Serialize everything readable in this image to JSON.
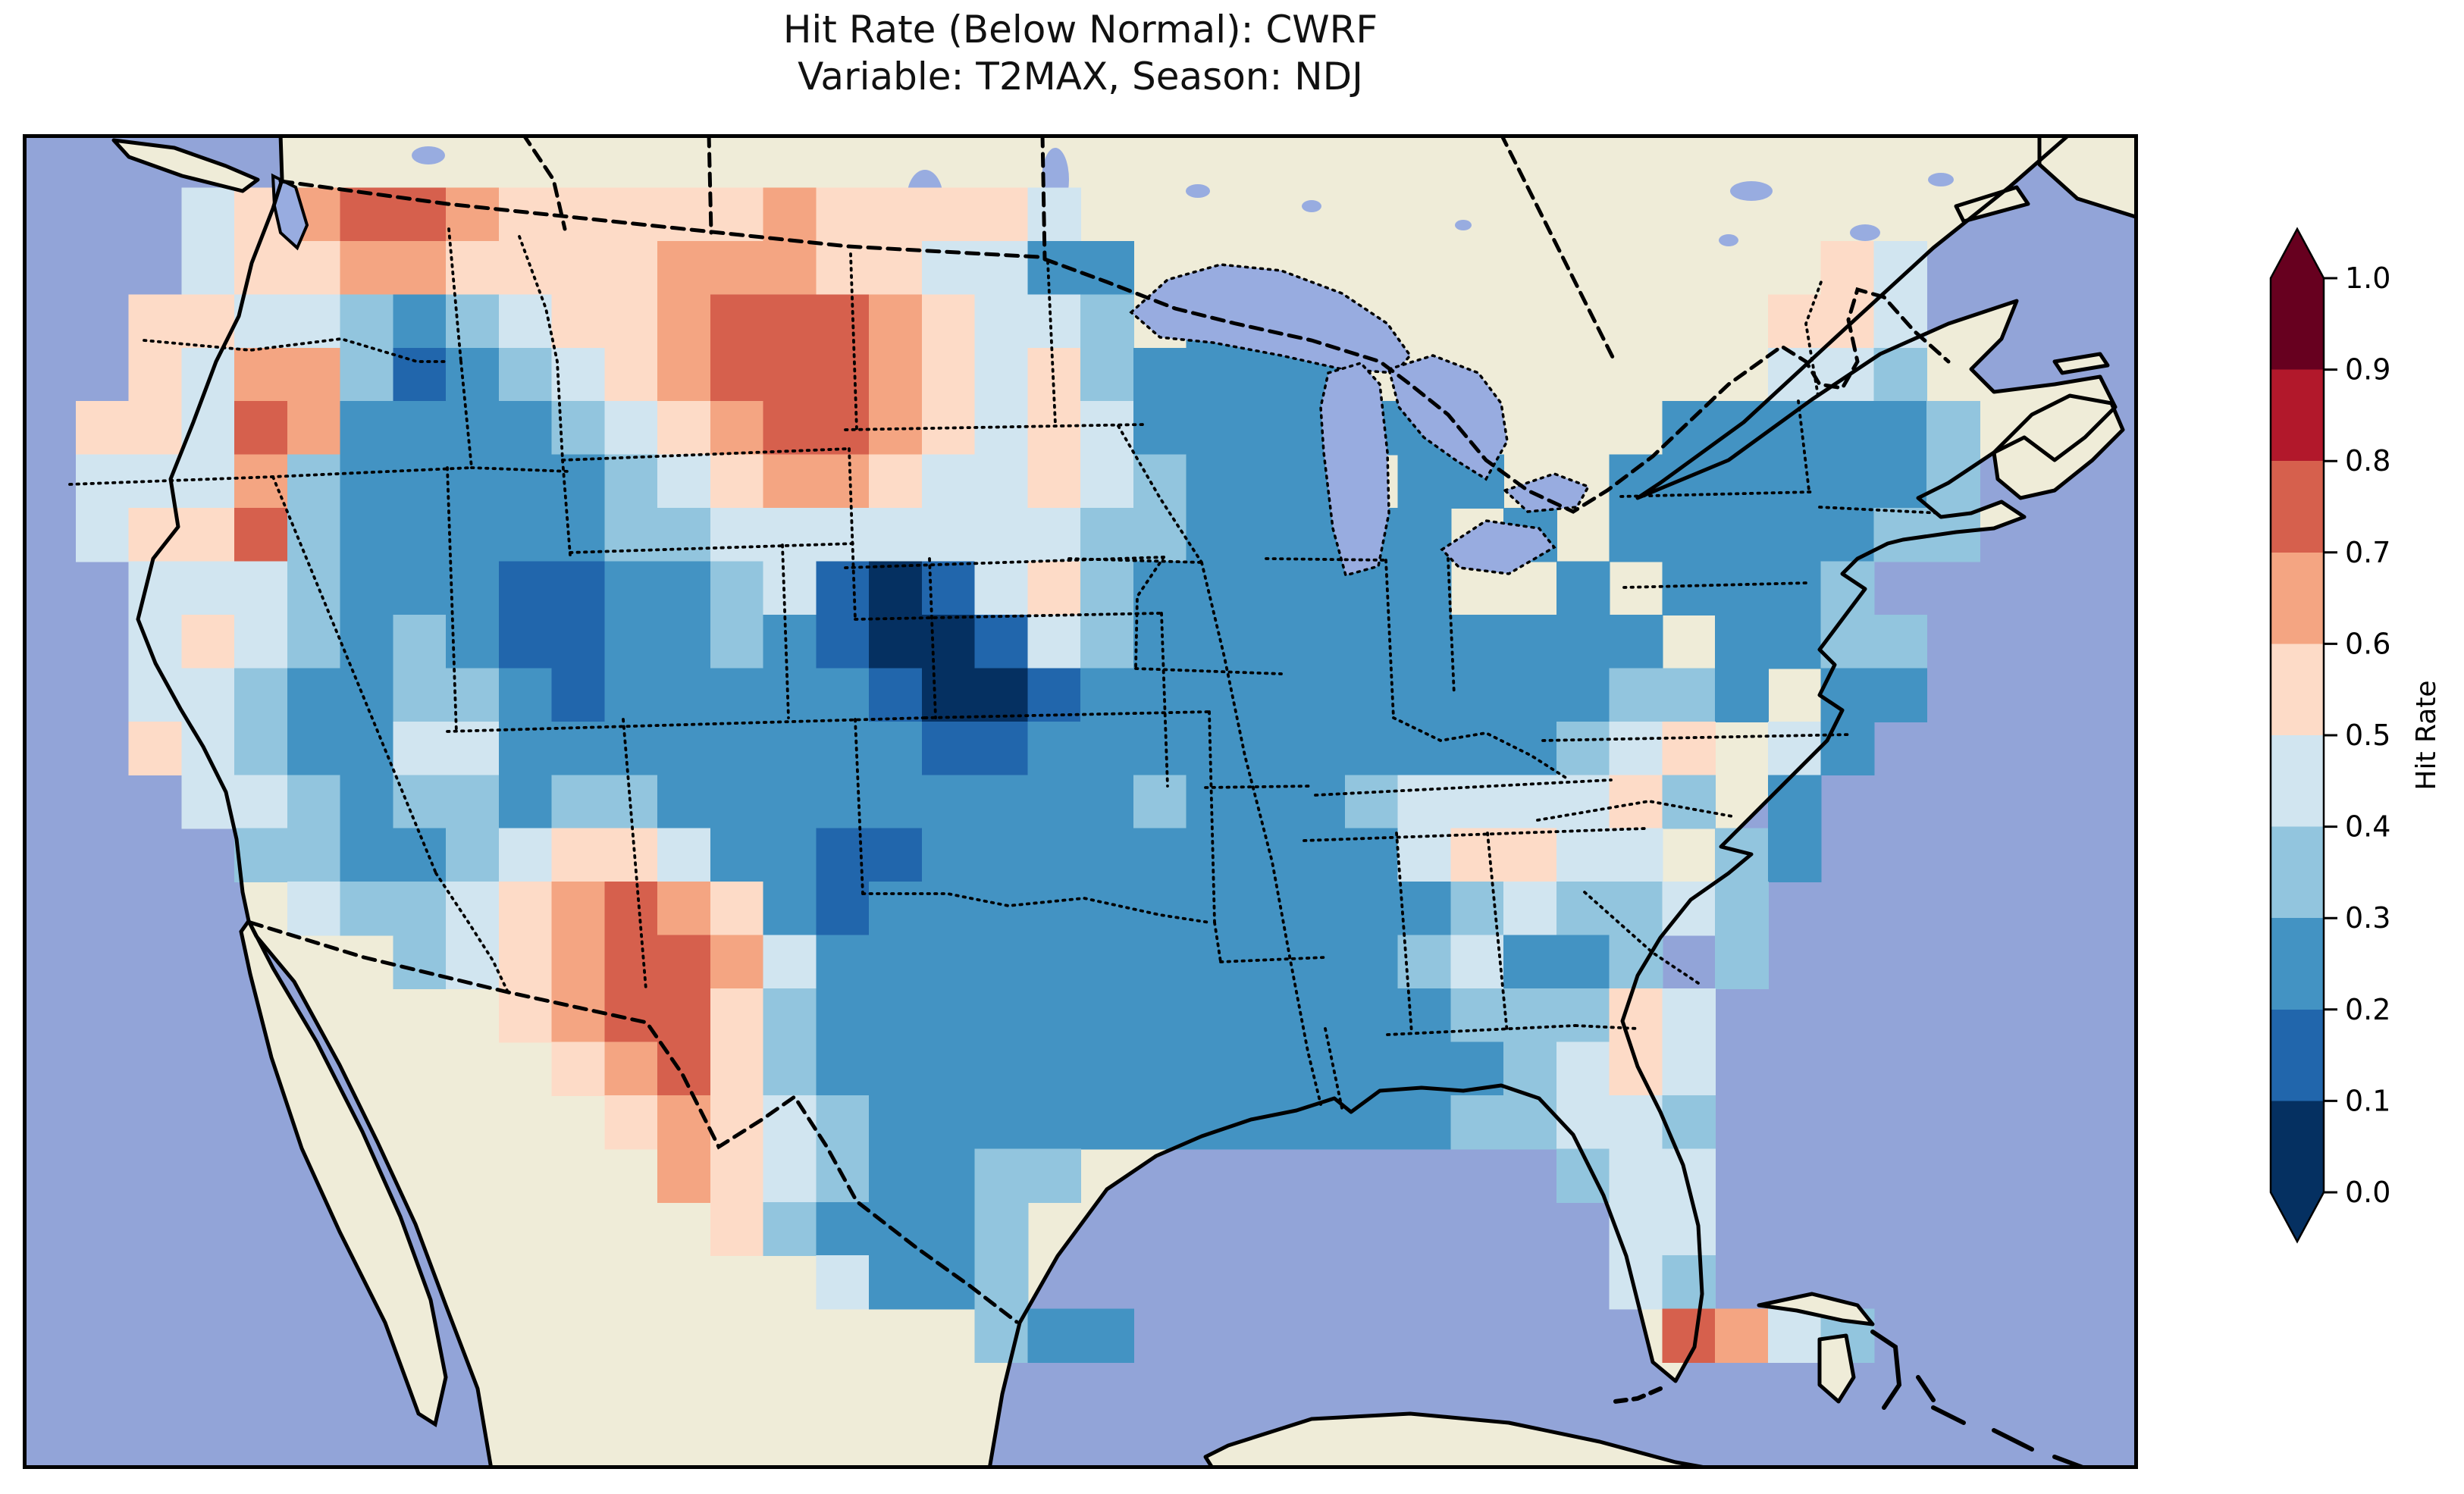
{
  "title": {
    "line1": "Hit Rate (Below Normal): CWRF",
    "line2": "Variable: T2MAX, Season: NDJ"
  },
  "colorbar": {
    "label": "Hit Rate",
    "ticks": [
      "1.0",
      "0.9",
      "0.8",
      "0.7",
      "0.6",
      "0.5",
      "0.4",
      "0.3",
      "0.2",
      "0.1",
      "0.0"
    ],
    "min": 0.0,
    "max": 1.0,
    "bin_size": 0.1,
    "extend": "both"
  },
  "map_colors": {
    "ocean": "#92a4d8",
    "land": "#efecd8",
    "lakes": "#98ace0",
    "coastline": "#000000"
  },
  "chart_data": {
    "type": "heatmap",
    "title": "Hit Rate (Below Normal): CWRF",
    "subtitle": "Variable: T2MAX, Season: NDJ",
    "model": "CWRF",
    "variable": "T2MAX",
    "season": "NDJ",
    "metric": "Hit Rate",
    "category": "Below Normal",
    "region": "Contiguous United States (with surrounding Canada, Mexico, Gulf of Mexico, Bahamas, Cuba shown as base map)",
    "colorbar": {
      "label": "Hit Rate",
      "ticks": [
        "1.0",
        "0.9",
        "0.8",
        "0.7",
        "0.6",
        "0.5",
        "0.4",
        "0.3",
        "0.2",
        "0.1",
        "0.0"
      ],
      "range": [
        0.0,
        1.0
      ],
      "bins": [
        0.0,
        0.1,
        0.2,
        0.3,
        0.4,
        0.5,
        0.6,
        0.7,
        0.8,
        0.9,
        1.0
      ],
      "extend": "both",
      "palette_low_to_high": [
        "#053061",
        "#2166ac",
        "#4393c3",
        "#92c5de",
        "#d1e5f0",
        "#fddbc7",
        "#f4a582",
        "#d6604d",
        "#b2182b",
        "#67001f"
      ]
    },
    "grid": {
      "description": "Coarse rasterization of the hit-rate field over the map area. Each char = one cell; value key maps char to hit-rate bin midpoint; '.' = no data (outside CONUS).",
      "ncols": 40,
      "nrows": 25,
      "value_key": {
        "0": 0.05,
        "1": 0.15,
        "2": 0.25,
        "3": 0.35,
        "4": 0.45,
        "5": 0.55,
        "6": 0.65,
        "7": 0.75,
        "8": 0.85,
        "9": 0.95,
        ".": null
      },
      "rows": [
        "........................................",
        "...45677655555655554....................",
        "...455665555566655442 2..........54...",
        "..555443234556777654432 2.......554...",
        "..5466312345677765453222 2......443...",
        ".554762222345677654542222 22...222223...",
        ".444632222234566544543222 22...2222223..",
        ".4557322222334444444332222 22.22222233..",
        "..444322211223410145322222 2..222223....",
        "..4543232112232100143222222 22222233....",
        "..443223321222221001222222222233222.....",
        "..5432244222222221122222222223454 2.....",
        "...443233233222222222322234444532.......",
        "....3322345542211222222222455443 2......",
        ".....433456765212222222222 343343.......",
        ".......34567764222222222223422 33.......",
        ".........5677532222222222223335 4.......",
        "..........567532222222222222345 4.......",
        "...........5654322222222222334 43.......",
        "............65432233.........344........",
        ".............532223...........44........",
        "...............4223...........43........",
        "..................322..........7643.....",
        "........................................",
        "........................................"
      ],
      "rows_fixed": [
        "........................................",
        "...45677655555655554....................",
        "...45566555566655442 2..................",
        "..55443234556777654 4322................",
        "..54663123456777654 532222..............",
        ".554762222345677654 54222222............",
        ".444632222234566544 54322222............",
        ".455732222233444444 43322222 2..........",
        "..44432221122341014 53222222............",
        "..45432321122321001 43222222 2..........",
        "..44322332122222100 12222222 22.........",
        "..54322442222222211 22222222 23.........",
        "...44323323322222222232223444 4.........",
        "....33223455422112222222224554..........",
        ".....4334567652122222222223433..........",
        ".......345677642222222222234 22.........",
        ".........567753222222222222333..........",
        "..........56753222222222222234..........",
        "...........56543222222222223 34.........",
        "............6543223 3..................."
      ],
      "rows_final": [
        "........................................",
        "...45677655555655554....................",
        "...4556655555666554422...........54...",
        "..55443234556777654 4322.......554...",
        "..546631234567776545 32222.....443..."
      ]
    },
    "heat_rows": [
      "........................................",
      "...45677655555655554....................",
      "...455665555666554422.............54....",
      "..5544323455677765443 22.........554....",
      "..54663123456777654532222 .......443....",
      ".55476222234567765454222222....222223...",
      ".444632222234566544543222 22..2222223...",
      ".45573222223344444443322222 2.2222233...",
      "..4443222112234101453222222..2 2223.....",
      "..45432321122321001432222222222 2233....",
      "..4432233212222210012222222222332 22....",
      "..543224422222222112222222222345 42.....",
      "...44323323322222222232223444453 2......",
      "....332234554221122222222245544 32......",
      ".....4334567652122222222222343343.......",
      ".......345677642222222222234223 3.......",
      ".........56775322222222222233354........",
      "..........5675322222222222223454........",
      "...........565432222222222233443........",
      "............65432233.........344........",
      ".............532223...........44........",
      "...............4223...........43........",
      "..................322..........7643.....",
      "........................................",
      "........................................"
    ]
  }
}
